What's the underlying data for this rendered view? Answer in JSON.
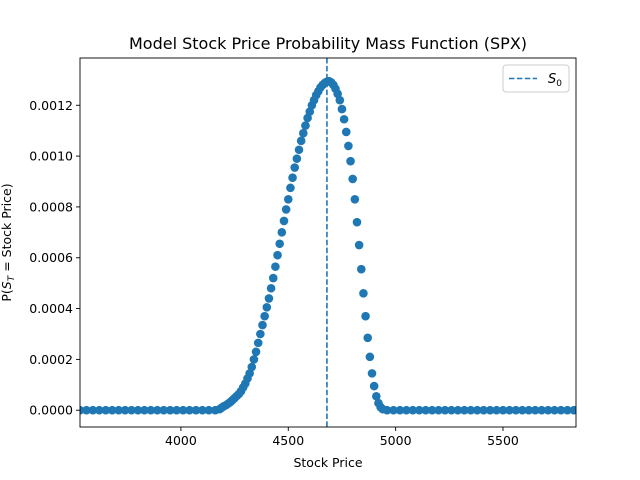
{
  "chart_data": {
    "type": "scatter",
    "title": "Model Stock Price Probability Mass Function (SPX)",
    "xlabel": "Stock Price",
    "ylabel": "P(S_T = Stock Price)",
    "xlim": [
      3530,
      5840
    ],
    "ylim": [
      -6.6e-05,
      0.001386
    ],
    "xticks": [
      4000,
      4500,
      5000,
      5500
    ],
    "yticks": [
      0.0,
      0.0002,
      0.0004,
      0.0006,
      0.0008,
      0.001,
      0.0012
    ],
    "xtick_labels": [
      "4000",
      "4500",
      "5000",
      "5500"
    ],
    "ytick_labels": [
      "0.0000",
      "0.0002",
      "0.0004",
      "0.0006",
      "0.0008",
      "0.0010",
      "0.0012"
    ],
    "marker_color": "#1f77b4",
    "s0_value": 4680,
    "legend": {
      "label": "S_0",
      "placement": "upper right",
      "line_style": "dashed"
    },
    "points": [
      [
        3530,
        0.0
      ],
      [
        3560,
        0.0
      ],
      [
        3590,
        0.0
      ],
      [
        3620,
        0.0
      ],
      [
        3650,
        0.0
      ],
      [
        3680,
        0.0
      ],
      [
        3710,
        0.0
      ],
      [
        3740,
        0.0
      ],
      [
        3770,
        0.0
      ],
      [
        3800,
        0.0
      ],
      [
        3830,
        0.0
      ],
      [
        3860,
        0.0
      ],
      [
        3890,
        0.0
      ],
      [
        3920,
        0.0
      ],
      [
        3950,
        0.0
      ],
      [
        3980,
        0.0
      ],
      [
        4010,
        0.0
      ],
      [
        4040,
        0.0
      ],
      [
        4070,
        0.0
      ],
      [
        4100,
        0.0
      ],
      [
        4130,
        0.0
      ],
      [
        4160,
        0.0
      ],
      [
        4180,
        4e-06
      ],
      [
        4190,
        1e-05
      ],
      [
        4200,
        1.6e-05
      ],
      [
        4210,
        2e-05
      ],
      [
        4220,
        2.6e-05
      ],
      [
        4230,
        3.2e-05
      ],
      [
        4240,
        4e-05
      ],
      [
        4250,
        4.8e-05
      ],
      [
        4260,
        5.6e-05
      ],
      [
        4270,
        6.4e-05
      ],
      [
        4280,
        7.5e-05
      ],
      [
        4290,
        9e-05
      ],
      [
        4300,
        0.000105
      ],
      [
        4310,
        0.000125
      ],
      [
        4320,
        0.000145
      ],
      [
        4330,
        0.00017
      ],
      [
        4340,
        0.0002
      ],
      [
        4350,
        0.00023
      ],
      [
        4360,
        0.000265
      ],
      [
        4370,
        0.0003
      ],
      [
        4380,
        0.000335
      ],
      [
        4390,
        0.00037
      ],
      [
        4400,
        0.000405
      ],
      [
        4410,
        0.00044
      ],
      [
        4420,
        0.00048
      ],
      [
        4430,
        0.00052
      ],
      [
        4440,
        0.000565
      ],
      [
        4450,
        0.00061
      ],
      [
        4460,
        0.000655
      ],
      [
        4470,
        0.0007
      ],
      [
        4480,
        0.000745
      ],
      [
        4490,
        0.00079
      ],
      [
        4500,
        0.00083
      ],
      [
        4510,
        0.000875
      ],
      [
        4520,
        0.000915
      ],
      [
        4530,
        0.000955
      ],
      [
        4540,
        0.00099
      ],
      [
        4550,
        0.001025
      ],
      [
        4560,
        0.00106
      ],
      [
        4570,
        0.00109
      ],
      [
        4580,
        0.00112
      ],
      [
        4590,
        0.00115
      ],
      [
        4600,
        0.001175
      ],
      [
        4610,
        0.0012
      ],
      [
        4620,
        0.00122
      ],
      [
        4630,
        0.00124
      ],
      [
        4640,
        0.001255
      ],
      [
        4650,
        0.00127
      ],
      [
        4660,
        0.00128
      ],
      [
        4670,
        0.001288
      ],
      [
        4680,
        0.001293
      ],
      [
        4690,
        0.001295
      ],
      [
        4700,
        0.00129
      ],
      [
        4710,
        0.00128
      ],
      [
        4720,
        0.001265
      ],
      [
        4730,
        0.001245
      ],
      [
        4740,
        0.00122
      ],
      [
        4750,
        0.001185
      ],
      [
        4760,
        0.001145
      ],
      [
        4770,
        0.001095
      ],
      [
        4780,
        0.00104
      ],
      [
        4790,
        0.00098
      ],
      [
        4800,
        0.00091
      ],
      [
        4810,
        0.00083
      ],
      [
        4820,
        0.00074
      ],
      [
        4830,
        0.00065
      ],
      [
        4840,
        0.000555
      ],
      [
        4850,
        0.00046
      ],
      [
        4860,
        0.00037
      ],
      [
        4870,
        0.000285
      ],
      [
        4880,
        0.00021
      ],
      [
        4890,
        0.000145
      ],
      [
        4900,
        9.5e-05
      ],
      [
        4910,
        5.5e-05
      ],
      [
        4920,
        2.8e-05
      ],
      [
        4930,
        1.2e-05
      ],
      [
        4940,
        4e-06
      ],
      [
        4960,
        0.0
      ],
      [
        4990,
        0.0
      ],
      [
        5020,
        0.0
      ],
      [
        5050,
        0.0
      ],
      [
        5080,
        0.0
      ],
      [
        5110,
        0.0
      ],
      [
        5140,
        0.0
      ],
      [
        5170,
        0.0
      ],
      [
        5200,
        0.0
      ],
      [
        5230,
        0.0
      ],
      [
        5260,
        0.0
      ],
      [
        5290,
        0.0
      ],
      [
        5320,
        0.0
      ],
      [
        5350,
        0.0
      ],
      [
        5380,
        0.0
      ],
      [
        5410,
        0.0
      ],
      [
        5440,
        0.0
      ],
      [
        5470,
        0.0
      ],
      [
        5500,
        0.0
      ],
      [
        5530,
        0.0
      ],
      [
        5560,
        0.0
      ],
      [
        5590,
        0.0
      ],
      [
        5620,
        0.0
      ],
      [
        5650,
        0.0
      ],
      [
        5680,
        0.0
      ],
      [
        5710,
        0.0
      ],
      [
        5740,
        0.0
      ],
      [
        5770,
        0.0
      ],
      [
        5800,
        0.0
      ],
      [
        5830,
        0.0
      ]
    ]
  }
}
